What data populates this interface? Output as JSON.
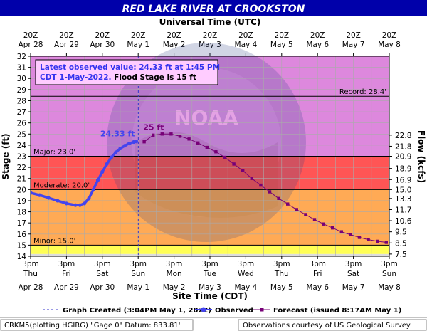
{
  "title": "RED LAKE RIVER AT CROOKSTON",
  "top_axis_title": "Universal Time (UTC)",
  "bottom_axis_title": "Site Time (CDT)",
  "colors": {
    "title_bg": "#0000aa",
    "title_fg": "#ffffff",
    "record_zone": "#dd88dd",
    "major_zone": "#ff5555",
    "moderate_zone": "#ffaa55",
    "minor_zone": "#ffff55",
    "below_minor": "#dddddd",
    "observed": "#4444ee",
    "forecast": "#770077"
  },
  "annotation": {
    "line1": "Latest observed value: 24.33 ft at 1:45 PM",
    "line2": "CDT 1-May-2022.",
    "line3": " Flood Stage is 15 ft"
  },
  "legend": {
    "created": "Graph Created (3:04PM May 1, 2022)",
    "observed": "Observed",
    "forecast": "Forecast (issued 8:17AM May 1)"
  },
  "footer": {
    "left": "CRKM5(plotting HGIRG) \"Gage 0\" Datum: 833.81'",
    "right": "Observations courtesy of US Geological Survey"
  },
  "chart_data": {
    "type": "line",
    "title": "RED LAKE RIVER AT CROOKSTON",
    "xlabel": "Site Time (CDT)",
    "ylabel": "Stage (ft)",
    "y2label": "Flow (kcfs)",
    "ylim": [
      14,
      32
    ],
    "xlim": [
      "2022-04-28 15:00",
      "2022-05-08 15:00"
    ],
    "grid": true,
    "y_ticks": [
      14,
      15,
      16,
      17,
      18,
      19,
      20,
      21,
      22,
      23,
      24,
      25,
      26,
      27,
      28,
      29,
      30,
      31,
      32
    ],
    "y2_ticks": [
      {
        "stage": 14.2,
        "label": "7.5"
      },
      {
        "stage": 15.2,
        "label": "8.5"
      },
      {
        "stage": 16.2,
        "label": "9.5"
      },
      {
        "stage": 17.2,
        "label": "10.6"
      },
      {
        "stage": 18.2,
        "label": "11.7"
      },
      {
        "stage": 19.2,
        "label": "13.3"
      },
      {
        "stage": 20.0,
        "label": "15.0"
      },
      {
        "stage": 20.9,
        "label": "16.9"
      },
      {
        "stage": 21.9,
        "label": "18.9"
      },
      {
        "stage": 23.0,
        "label": "20.9"
      },
      {
        "stage": 23.9,
        "label": "21.8"
      },
      {
        "stage": 24.9,
        "label": "22.8"
      }
    ],
    "bottom_ticks": [
      {
        "line1": "3pm",
        "line2": "Thu",
        "line3": "Apr 28"
      },
      {
        "line1": "3pm",
        "line2": "Fri",
        "line3": "Apr 29"
      },
      {
        "line1": "3pm",
        "line2": "Sat",
        "line3": "Apr 30"
      },
      {
        "line1": "3pm",
        "line2": "Sun",
        "line3": "May 1"
      },
      {
        "line1": "3pm",
        "line2": "Mon",
        "line3": "May 2"
      },
      {
        "line1": "3pm",
        "line2": "Tue",
        "line3": "May 3"
      },
      {
        "line1": "3pm",
        "line2": "Wed",
        "line3": "May 4"
      },
      {
        "line1": "3pm",
        "line2": "Thu",
        "line3": "May 5"
      },
      {
        "line1": "3pm",
        "line2": "Fri",
        "line3": "May 6"
      },
      {
        "line1": "3pm",
        "line2": "Sat",
        "line3": "May 7"
      },
      {
        "line1": "3pm",
        "line2": "Sun",
        "line3": "May 8"
      }
    ],
    "top_ticks": [
      {
        "line1": "20Z",
        "line2": "Apr 28"
      },
      {
        "line1": "20Z",
        "line2": "Apr 29"
      },
      {
        "line1": "20Z",
        "line2": "Apr 30"
      },
      {
        "line1": "20Z",
        "line2": "May 1"
      },
      {
        "line1": "20Z",
        "line2": "May 2"
      },
      {
        "line1": "20Z",
        "line2": "May 3"
      },
      {
        "line1": "20Z",
        "line2": "May 4"
      },
      {
        "line1": "20Z",
        "line2": "May 5"
      },
      {
        "line1": "20Z",
        "line2": "May 6"
      },
      {
        "line1": "20Z",
        "line2": "May 7"
      },
      {
        "line1": "20Z",
        "line2": "May 8"
      }
    ],
    "thresholds": [
      {
        "name": "Record",
        "value": 28.4,
        "label": "Record: 28.4'"
      },
      {
        "name": "Major",
        "value": 23.0,
        "label": "Major: 23.0'"
      },
      {
        "name": "Moderate",
        "value": 20.0,
        "label": "Moderate: 20.0'"
      },
      {
        "name": "Minor",
        "value": 15.0,
        "label": "Minor: 15.0'"
      }
    ],
    "graph_created": "2022-05-01 15:04",
    "observed_label": "24.33 ft",
    "forecast_label": "25 ft",
    "observed": [
      {
        "t": "2022-04-28 15:00",
        "v": 19.7
      },
      {
        "t": "2022-04-28 21:00",
        "v": 19.5
      },
      {
        "t": "2022-04-29 03:00",
        "v": 19.25
      },
      {
        "t": "2022-04-29 09:00",
        "v": 19.0
      },
      {
        "t": "2022-04-29 15:00",
        "v": 18.75
      },
      {
        "t": "2022-04-29 21:00",
        "v": 18.6
      },
      {
        "t": "2022-04-30 00:00",
        "v": 18.6
      },
      {
        "t": "2022-04-30 03:00",
        "v": 18.75
      },
      {
        "t": "2022-04-30 06:00",
        "v": 19.2
      },
      {
        "t": "2022-04-30 09:00",
        "v": 20.0
      },
      {
        "t": "2022-04-30 12:00",
        "v": 20.85
      },
      {
        "t": "2022-04-30 15:00",
        "v": 21.6
      },
      {
        "t": "2022-04-30 18:00",
        "v": 22.3
      },
      {
        "t": "2022-04-30 21:00",
        "v": 22.9
      },
      {
        "t": "2022-05-01 00:00",
        "v": 23.35
      },
      {
        "t": "2022-05-01 03:00",
        "v": 23.7
      },
      {
        "t": "2022-05-01 06:00",
        "v": 23.95
      },
      {
        "t": "2022-05-01 09:00",
        "v": 24.15
      },
      {
        "t": "2022-05-01 12:00",
        "v": 24.28
      },
      {
        "t": "2022-05-01 13:45",
        "v": 24.33
      }
    ],
    "forecast": [
      {
        "t": "2022-05-01 19:00",
        "v": 24.3
      },
      {
        "t": "2022-05-02 01:00",
        "v": 24.9
      },
      {
        "t": "2022-05-02 07:00",
        "v": 25.0
      },
      {
        "t": "2022-05-02 13:00",
        "v": 25.0
      },
      {
        "t": "2022-05-02 19:00",
        "v": 24.8
      },
      {
        "t": "2022-05-03 01:00",
        "v": 24.55
      },
      {
        "t": "2022-05-03 07:00",
        "v": 24.2
      },
      {
        "t": "2022-05-03 13:00",
        "v": 23.8
      },
      {
        "t": "2022-05-03 19:00",
        "v": 23.4
      },
      {
        "t": "2022-05-04 01:00",
        "v": 22.9
      },
      {
        "t": "2022-05-04 07:00",
        "v": 22.3
      },
      {
        "t": "2022-05-04 13:00",
        "v": 21.7
      },
      {
        "t": "2022-05-04 19:00",
        "v": 21.0
      },
      {
        "t": "2022-05-05 01:00",
        "v": 20.4
      },
      {
        "t": "2022-05-05 07:00",
        "v": 19.8
      },
      {
        "t": "2022-05-05 13:00",
        "v": 19.2
      },
      {
        "t": "2022-05-05 19:00",
        "v": 18.7
      },
      {
        "t": "2022-05-06 01:00",
        "v": 18.2
      },
      {
        "t": "2022-05-06 07:00",
        "v": 17.75
      },
      {
        "t": "2022-05-06 13:00",
        "v": 17.3
      },
      {
        "t": "2022-05-06 19:00",
        "v": 16.9
      },
      {
        "t": "2022-05-07 01:00",
        "v": 16.55
      },
      {
        "t": "2022-05-07 07:00",
        "v": 16.2
      },
      {
        "t": "2022-05-07 13:00",
        "v": 15.95
      },
      {
        "t": "2022-05-07 19:00",
        "v": 15.7
      },
      {
        "t": "2022-05-08 01:00",
        "v": 15.5
      },
      {
        "t": "2022-05-08 07:00",
        "v": 15.35
      },
      {
        "t": "2022-05-08 13:00",
        "v": 15.25
      }
    ]
  }
}
